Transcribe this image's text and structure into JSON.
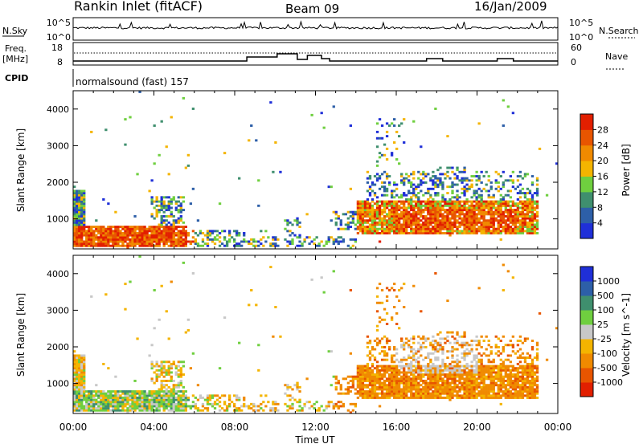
{
  "header": {
    "station": "Rankin Inlet (fitACF)",
    "beam": "Beam 09",
    "date": "16/Jan/2009"
  },
  "top_panels": {
    "nsky_label": "N.Sky",
    "nsky_ticks": [
      "10^5",
      "10^0"
    ],
    "nsearch_label": "N.Search",
    "nsearch_ticks": [
      "10^5",
      "10^0"
    ],
    "freq_label_1": "Freq.",
    "freq_label_2": "[MHz]",
    "freq_ticks": [
      "18",
      "8"
    ],
    "nave_label": "Nave",
    "nave_ticks": [
      "60",
      "0"
    ],
    "cpid_label": "CPID",
    "cpid_value": "normalsound (fast) 157"
  },
  "colors": {
    "power": [
      "#1f2fd8",
      "#2d5fa8",
      "#3f8f6e",
      "#6fcf3f",
      "#f4b400",
      "#f08a00",
      "#e85500",
      "#e21f00"
    ],
    "velocity": [
      "#1f2fd8",
      "#2d5fa8",
      "#3f8f6e",
      "#6fcf3f",
      "#c8c8c8",
      "#f4b400",
      "#f08a00",
      "#e85500",
      "#e21f00"
    ]
  },
  "chart_data": [
    {
      "type": "heatmap",
      "name": "power",
      "ylabel": "Slant Range [km]",
      "xlabel": "Time UT",
      "x_ticks": [
        "00:00",
        "04:00",
        "08:00",
        "12:00",
        "16:00",
        "20:00",
        "00:00"
      ],
      "y_ticks": [
        "1000",
        "2000",
        "3000",
        "4000"
      ],
      "colorbar_label": "Power [dB]",
      "colorbar_ticks": [
        "4",
        "8",
        "12",
        "16",
        "20",
        "24",
        "28"
      ],
      "xlim": [
        0,
        24
      ],
      "ylim": [
        180,
        4500
      ]
    },
    {
      "type": "heatmap",
      "name": "velocity",
      "ylabel": "Slant Range [km]",
      "xlabel": "Time UT",
      "x_ticks": [
        "00:00",
        "04:00",
        "08:00",
        "12:00",
        "16:00",
        "20:00",
        "00:00"
      ],
      "y_ticks": [
        "1000",
        "2000",
        "3000",
        "4000"
      ],
      "colorbar_label": "Velocity [m s^-1]",
      "colorbar_ticks": [
        "1000",
        "500",
        "100",
        "25",
        "-25",
        "-100",
        "-500",
        "-1000"
      ],
      "xlim": [
        0,
        24
      ],
      "ylim": [
        180,
        4500
      ]
    }
  ],
  "footer": {
    "time_label": "Time UT"
  }
}
